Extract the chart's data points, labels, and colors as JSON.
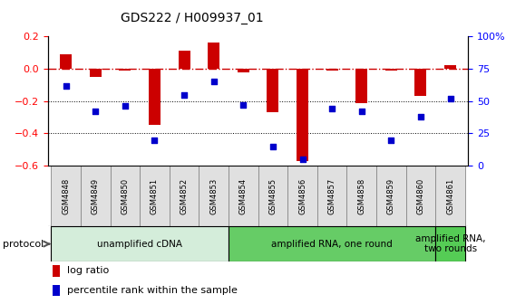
{
  "title": "GDS222 / H009937_01",
  "samples": [
    "GSM4848",
    "GSM4849",
    "GSM4850",
    "GSM4851",
    "GSM4852",
    "GSM4853",
    "GSM4854",
    "GSM4855",
    "GSM4856",
    "GSM4857",
    "GSM4858",
    "GSM4859",
    "GSM4860",
    "GSM4861"
  ],
  "log_ratio": [
    0.09,
    -0.05,
    -0.01,
    -0.35,
    0.11,
    0.16,
    -0.02,
    -0.27,
    -0.57,
    -0.01,
    -0.21,
    -0.01,
    -0.17,
    0.02
  ],
  "percentile": [
    62,
    42,
    46,
    20,
    55,
    65,
    47,
    15,
    5,
    44,
    42,
    20,
    38,
    52
  ],
  "ylim_left": [
    -0.6,
    0.2
  ],
  "ylim_right": [
    0,
    100
  ],
  "bar_color": "#cc0000",
  "dot_color": "#0000cc",
  "hline_color": "#cc0000",
  "grid_color": "#000000",
  "left_yticks": [
    -0.6,
    -0.4,
    -0.2,
    0.0,
    0.2
  ],
  "right_yticks": [
    0,
    25,
    50,
    75,
    100
  ],
  "right_yticklabels": [
    "0",
    "25",
    "50",
    "75",
    "100%"
  ],
  "protocol_groups": [
    {
      "label": "unamplified cDNA",
      "start": 0,
      "end": 5,
      "color": "#d4edda"
    },
    {
      "label": "amplified RNA, one round",
      "start": 6,
      "end": 12,
      "color": "#66cc66"
    },
    {
      "label": "amplified RNA,\ntwo rounds",
      "start": 13,
      "end": 13,
      "color": "#55cc55"
    }
  ]
}
